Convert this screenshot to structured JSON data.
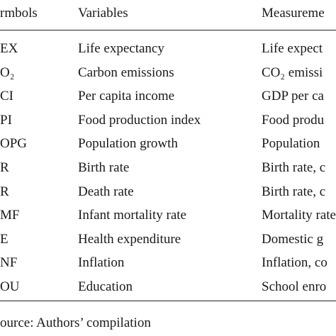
{
  "table": {
    "header": [
      "rmbols",
      "Variables",
      "Measureme"
    ],
    "rows": [
      [
        "EX",
        "Life expectancy",
        "Life expect"
      ],
      [
        "O₂",
        "Carbon emissions",
        "CO₂ emissi"
      ],
      [
        "CI",
        "Per capita income",
        "GDP per ca"
      ],
      [
        "PI",
        "Food production index",
        "Food produ"
      ],
      [
        "OPG",
        "Population growth",
        "Population"
      ],
      [
        "R",
        "Birth rate",
        "Birth rate, c"
      ],
      [
        "R",
        "Death rate",
        "Birth rate, c"
      ],
      [
        "MF",
        "Infant mortality rate",
        "Mortality rate"
      ],
      [
        "E",
        "Health expenditure",
        "Domestic g"
      ],
      [
        "NF",
        "Inflation",
        "Inflation, co"
      ],
      [
        "OU",
        "Education",
        "School enro"
      ]
    ]
  },
  "source": "ource: Authors’ compilation"
}
